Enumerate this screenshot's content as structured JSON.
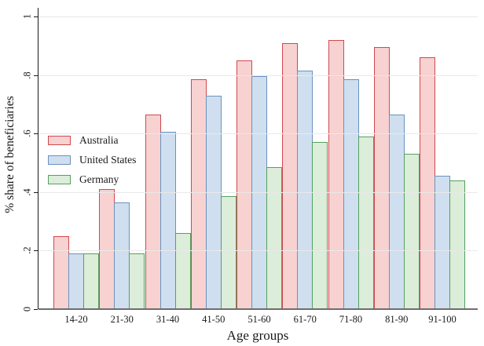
{
  "chart_data": {
    "type": "bar",
    "title": "",
    "xlabel": "Age groups",
    "ylabel": "% share of beneficiaries",
    "ylim": [
      0,
      1
    ],
    "grid": true,
    "legend_position": "left-middle",
    "yticks": [
      "0",
      ".2",
      ".4",
      ".6",
      ".8",
      "1"
    ],
    "ytick_values": [
      0,
      0.2,
      0.4,
      0.6,
      0.8,
      1
    ],
    "categories": [
      "14-20",
      "21-30",
      "31-40",
      "41-50",
      "51-60",
      "61-70",
      "71-80",
      "81-90",
      "91-100"
    ],
    "series": [
      {
        "name": "Australia",
        "fill": "#f8d1d1",
        "stroke": "#d0494f",
        "values": [
          0.25,
          0.41,
          0.665,
          0.785,
          0.85,
          0.91,
          0.92,
          0.895,
          0.86
        ]
      },
      {
        "name": "United States",
        "fill": "#cfdfef",
        "stroke": "#6a92bd",
        "values": [
          0.19,
          0.365,
          0.605,
          0.73,
          0.795,
          0.815,
          0.785,
          0.665,
          0.455
        ]
      },
      {
        "name": "Germany",
        "fill": "#dcedda",
        "stroke": "#55a05f",
        "values": [
          0.19,
          0.19,
          0.26,
          0.385,
          0.485,
          0.57,
          0.59,
          0.53,
          0.44
        ]
      }
    ]
  },
  "colors": {
    "background": "#ffffff",
    "gridline": "#e9e9e9",
    "y_axis": "#1a1a1a",
    "x_baseline": "#6e6e6e",
    "text": "#1a1a1a"
  }
}
